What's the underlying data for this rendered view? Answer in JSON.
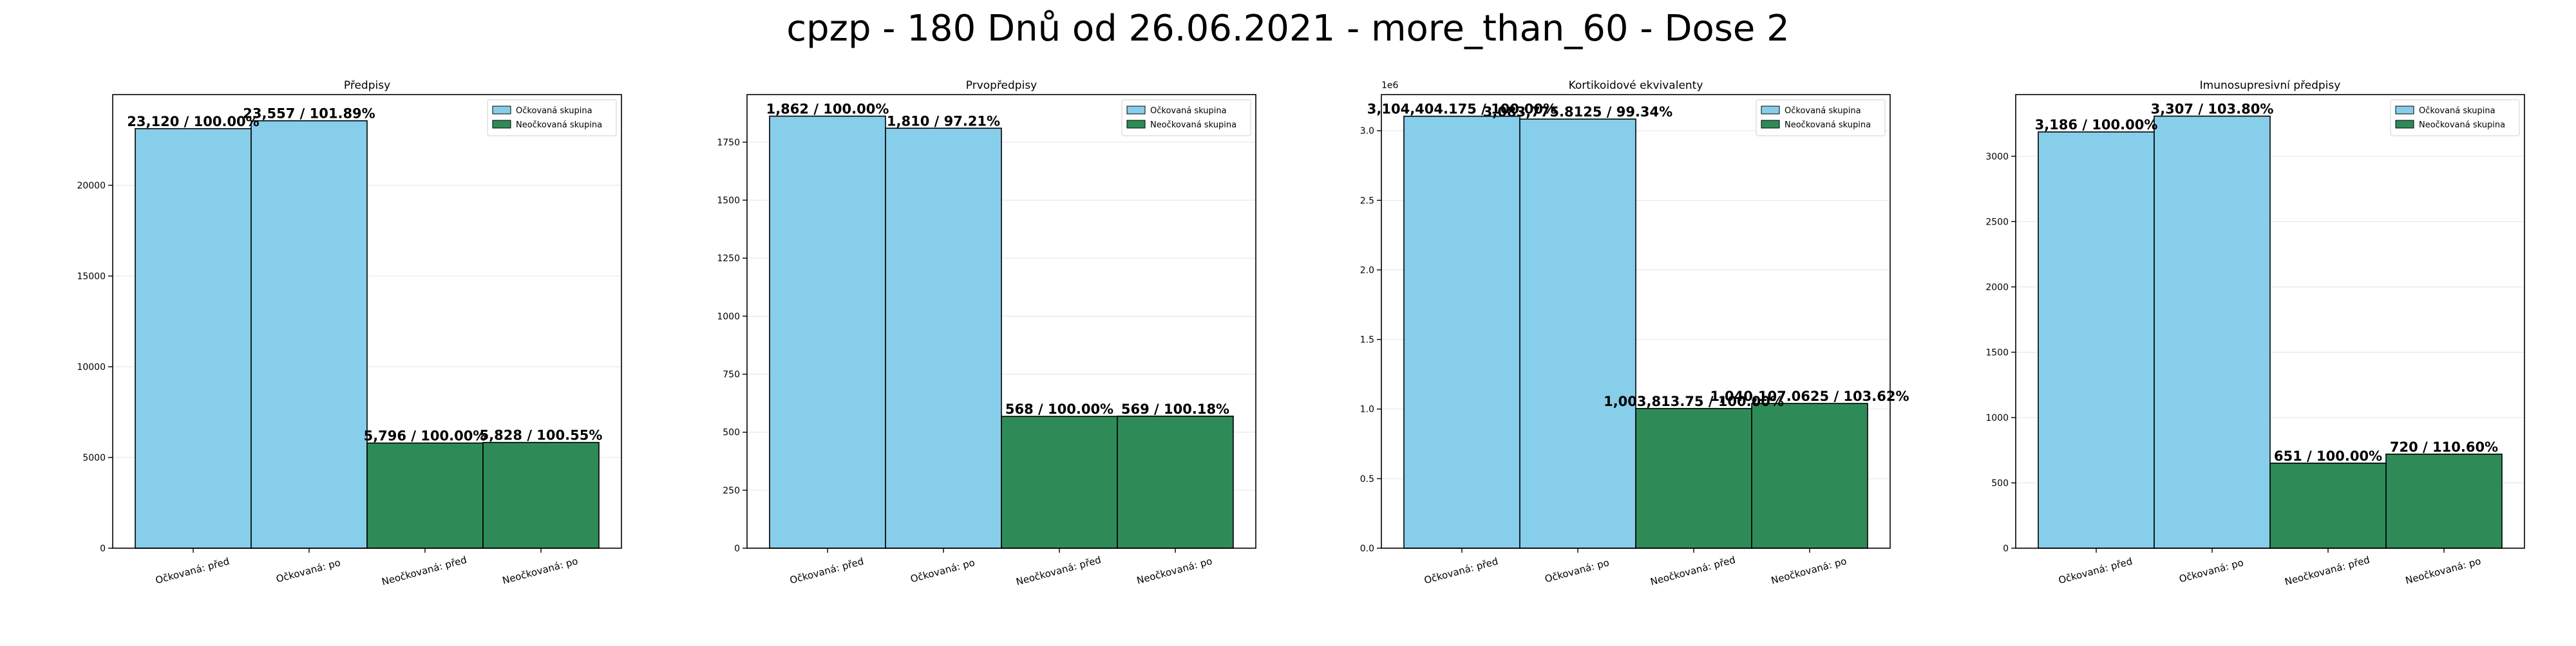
{
  "suptitle": "cpzp - 180 Dnů od 26.06.2021 - more_than_60 - Dose 2",
  "colors": {
    "vaccinated": "#87CEEB",
    "unvaccinated": "#2E8B57",
    "edge": "#000000"
  },
  "chart_data": [
    {
      "type": "bar",
      "title": "Předpisy",
      "categories": [
        "Očkovaná: před",
        "Očkovaná: po",
        "Neočkovaná: před",
        "Neočkovaná: po"
      ],
      "values": [
        23120,
        23557,
        5796,
        5828
      ],
      "bar_labels": [
        "23,120 / 100.00%",
        "23,557 / 101.89%",
        "5,796 / 100.00%",
        "5,828 / 100.55%"
      ],
      "bar_groups": [
        0,
        0,
        1,
        1
      ],
      "ylim": [
        0,
        25000
      ],
      "yticks": [
        0,
        5000,
        10000,
        15000,
        20000
      ],
      "ytick_labels": [
        "0",
        "5000",
        "10000",
        "15000",
        "20000"
      ],
      "offset_label": "",
      "legend": [
        "Očkovaná skupina",
        "Neočkovaná skupina"
      ],
      "legend_position": "top-right",
      "grid": "y"
    },
    {
      "type": "bar",
      "title": "Prvopředpisy",
      "categories": [
        "Očkovaná: před",
        "Očkovaná: po",
        "Neočkovaná: před",
        "Neočkovaná: po"
      ],
      "values": [
        1862,
        1810,
        568,
        569
      ],
      "bar_labels": [
        "1,862 / 100.00%",
        "1,810 / 97.21%",
        "568 / 100.00%",
        "569 / 100.18%"
      ],
      "bar_groups": [
        0,
        0,
        1,
        1
      ],
      "ylim": [
        0,
        1955
      ],
      "yticks": [
        0,
        250,
        500,
        750,
        1000,
        1250,
        1500,
        1750
      ],
      "ytick_labels": [
        "0",
        "250",
        "500",
        "750",
        "1000",
        "1250",
        "1500",
        "1750"
      ],
      "offset_label": "",
      "legend": [
        "Očkovaná skupina",
        "Neočkovaná skupina"
      ],
      "legend_position": "top-right",
      "grid": "y"
    },
    {
      "type": "bar",
      "title": "Kortikoidové ekvivalenty",
      "categories": [
        "Očkovaná: před",
        "Očkovaná: po",
        "Neočkovaná: před",
        "Neočkovaná: po"
      ],
      "values": [
        3104404.175,
        3083775.8125,
        1003813.75,
        1040107.0625
      ],
      "bar_labels": [
        "3,104,404.175 / 100.00%",
        "3,083,775.8125 / 99.34%",
        "1,003,813.75 / 100.00%",
        "1,040,107.0625 / 103.62%"
      ],
      "bar_groups": [
        0,
        0,
        1,
        1
      ],
      "ylim": [
        0,
        3260000
      ],
      "yticks": [
        0,
        500000,
        1000000,
        1500000,
        2000000,
        2500000,
        3000000
      ],
      "ytick_labels": [
        "0.0",
        "0.5",
        "1.0",
        "1.5",
        "2.0",
        "2.5",
        "3.0"
      ],
      "offset_label": "1e6",
      "legend": [
        "Očkovaná skupina",
        "Neočkovaná skupina"
      ],
      "legend_position": "top-right",
      "grid": "y"
    },
    {
      "type": "bar",
      "title": "Imunosupresivní předpisy",
      "categories": [
        "Očkovaná: před",
        "Očkovaná: po",
        "Neočkovaná: před",
        "Neočkovaná: po"
      ],
      "values": [
        3186,
        3307,
        651,
        720
      ],
      "bar_labels": [
        "3,186 / 100.00%",
        "3,307 / 103.80%",
        "651 / 100.00%",
        "720 / 110.60%"
      ],
      "bar_groups": [
        0,
        0,
        1,
        1
      ],
      "ylim": [
        0,
        3472
      ],
      "yticks": [
        0,
        500,
        1000,
        1500,
        2000,
        2500,
        3000
      ],
      "ytick_labels": [
        "0",
        "500",
        "1000",
        "1500",
        "2000",
        "2500",
        "3000"
      ],
      "offset_label": "",
      "legend": [
        "Očkovaná skupina",
        "Neočkovaná skupina"
      ],
      "legend_position": "top-right",
      "grid": "y"
    }
  ]
}
